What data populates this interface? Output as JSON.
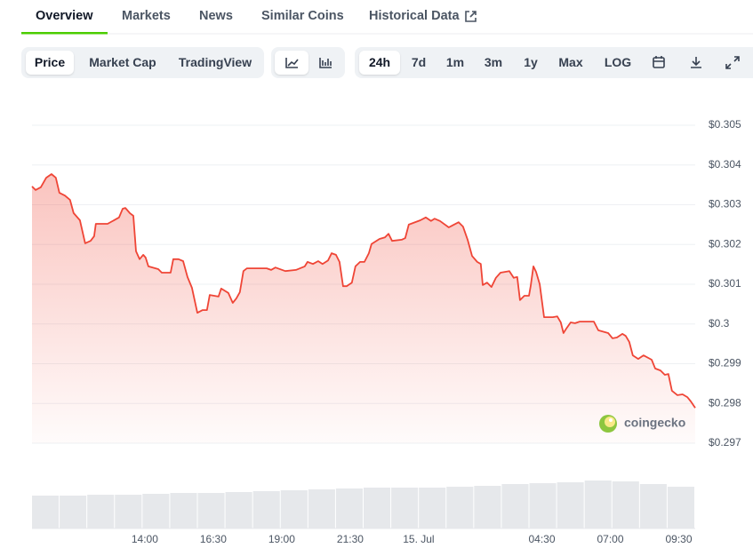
{
  "tabs": [
    "Overview",
    "Markets",
    "News",
    "Similar Coins",
    "Historical Data"
  ],
  "toolbar": {
    "views": [
      "Price",
      "Market Cap",
      "TradingView"
    ],
    "ranges": [
      "24h",
      "7d",
      "1m",
      "3m",
      "1y",
      "Max",
      "LOG"
    ]
  },
  "chart_data": {
    "type": "line",
    "watermark": "coingecko",
    "color": "#ef4536",
    "grid": true,
    "xlim": [
      9.88,
      34.1
    ],
    "xticks": [
      {
        "value": 14,
        "label": "14:00"
      },
      {
        "value": 16.5,
        "label": "16:30"
      },
      {
        "value": 19,
        "label": "19:00"
      },
      {
        "value": 21.5,
        "label": "21:30"
      },
      {
        "value": 24,
        "label": "15. Jul"
      },
      {
        "value": 28.5,
        "label": "04:30"
      },
      {
        "value": 31,
        "label": "07:00"
      },
      {
        "value": 33.5,
        "label": "09:30"
      }
    ],
    "ylim": [
      0.297,
      0.305
    ],
    "yticks": [
      {
        "value": 0.305,
        "label": "$0.305"
      },
      {
        "value": 0.304,
        "label": "$0.304"
      },
      {
        "value": 0.303,
        "label": "$0.303"
      },
      {
        "value": 0.302,
        "label": "$0.302"
      },
      {
        "value": 0.301,
        "label": "$0.301"
      },
      {
        "value": 0.3,
        "label": "$0.3"
      },
      {
        "value": 0.299,
        "label": "$0.299"
      },
      {
        "value": 0.298,
        "label": "$0.298"
      },
      {
        "value": 0.297,
        "label": "$0.297"
      }
    ],
    "x": [
      9.88,
      10.01,
      10.2,
      10.4,
      10.59,
      10.75,
      10.88,
      11.08,
      11.27,
      11.4,
      11.63,
      11.82,
      12.02,
      12.15,
      12.21,
      12.64,
      12.93,
      13.06,
      13.19,
      13.29,
      13.45,
      13.58,
      13.68,
      13.81,
      13.94,
      14.03,
      14.13,
      14.49,
      14.62,
      14.94,
      15.04,
      15.23,
      15.4,
      15.56,
      15.72,
      15.92,
      16.11,
      16.27,
      16.37,
      16.69,
      16.79,
      17.05,
      17.21,
      17.34,
      17.47,
      17.6,
      17.73,
      18.09,
      18.45,
      18.61,
      18.77,
      19.13,
      19.52,
      19.84,
      19.94,
      20.14,
      20.33,
      20.49,
      20.69,
      20.82,
      20.98,
      21.11,
      21.24,
      21.37,
      21.56,
      21.69,
      21.86,
      22.02,
      22.18,
      22.28,
      22.57,
      22.77,
      22.9,
      23.03,
      23.38,
      23.51,
      23.64,
      24.06,
      24.26,
      24.45,
      24.58,
      24.78,
      25.1,
      25.46,
      25.62,
      25.79,
      25.95,
      26.14,
      26.27,
      26.34,
      26.5,
      26.66,
      26.82,
      26.99,
      27.31,
      27.47,
      27.6,
      27.7,
      27.86,
      28.03,
      28.09,
      28.19,
      28.29,
      28.42,
      28.58,
      28.9,
      29.06,
      29.19,
      29.29,
      29.39,
      29.55,
      29.71,
      29.88,
      30.4,
      30.56,
      30.92,
      31.08,
      31.24,
      31.44,
      31.56,
      31.69,
      31.82,
      32.02,
      32.21,
      32.51,
      32.64,
      32.83,
      32.99,
      33.12,
      33.25,
      33.45,
      33.64,
      33.81,
      33.94,
      34.1
    ],
    "series": [
      {
        "name": "Price",
        "color": "#ef4536",
        "values": [
          0.30346,
          0.30337,
          0.30344,
          0.30368,
          0.30377,
          0.30368,
          0.3033,
          0.30323,
          0.30312,
          0.30279,
          0.30261,
          0.30203,
          0.30209,
          0.30221,
          0.30252,
          0.30252,
          0.30263,
          0.30268,
          0.3029,
          0.30292,
          0.30279,
          0.30272,
          0.30183,
          0.30163,
          0.30174,
          0.30167,
          0.30145,
          0.30138,
          0.30129,
          0.30129,
          0.30163,
          0.30163,
          0.30158,
          0.30118,
          0.30091,
          0.30028,
          0.30035,
          0.30035,
          0.30073,
          0.30069,
          0.30089,
          0.30078,
          0.30053,
          0.30064,
          0.3008,
          0.30133,
          0.3014,
          0.3014,
          0.3014,
          0.30136,
          0.30142,
          0.30133,
          0.30136,
          0.30145,
          0.30156,
          0.30151,
          0.30158,
          0.30151,
          0.3016,
          0.30178,
          0.30174,
          0.30156,
          0.30095,
          0.30095,
          0.30104,
          0.30145,
          0.30156,
          0.30156,
          0.30178,
          0.30201,
          0.30214,
          0.30218,
          0.30227,
          0.30209,
          0.30212,
          0.30216,
          0.3025,
          0.30261,
          0.30268,
          0.30259,
          0.30265,
          0.30259,
          0.30243,
          0.30256,
          0.30245,
          0.30212,
          0.30171,
          0.30156,
          0.30151,
          0.30098,
          0.30104,
          0.30093,
          0.30116,
          0.30129,
          0.30133,
          0.30116,
          0.30118,
          0.3006,
          0.30071,
          0.30071,
          0.30095,
          0.30145,
          0.30131,
          0.301,
          0.30017,
          0.30017,
          0.30019,
          0.30004,
          0.29977,
          0.29988,
          0.30004,
          0.30002,
          0.30006,
          0.30006,
          0.29984,
          0.29977,
          0.29964,
          0.29966,
          0.29975,
          0.2997,
          0.29955,
          0.29921,
          0.29912,
          0.29921,
          0.2991,
          0.29888,
          0.29883,
          0.29872,
          0.29874,
          0.29832,
          0.29821,
          0.29823,
          0.29816,
          0.29805,
          0.29789
        ]
      }
    ],
    "volume": {
      "color": "#e6e8eb",
      "values": [
        37,
        37,
        38,
        38,
        39,
        40,
        40,
        41,
        42,
        43,
        44,
        45,
        46,
        46,
        46,
        47,
        48,
        50,
        51,
        52,
        54,
        53,
        50,
        47
      ]
    }
  }
}
